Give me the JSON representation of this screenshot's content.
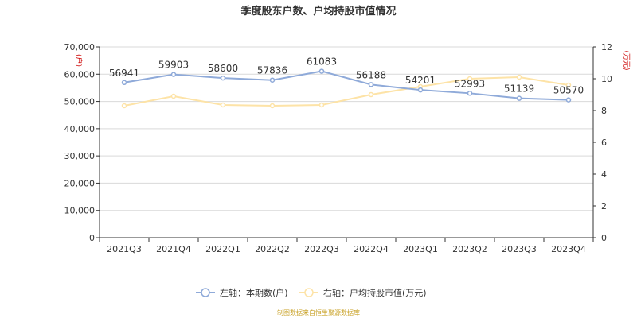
{
  "colors": {
    "left_series": "#8faad9",
    "right_series": "#fde3a7",
    "unit_label": "#cc0000",
    "source_text": "#c9a227",
    "grid": "#d9d9d9",
    "axis": "#333333"
  },
  "chart_data": {
    "type": "line",
    "title": "季度股东户数、户均持股市值情况",
    "categories": [
      "2021Q3",
      "2021Q4",
      "2022Q1",
      "2022Q2",
      "2022Q3",
      "2022Q4",
      "2023Q1",
      "2023Q2",
      "2023Q3",
      "2023Q4"
    ],
    "y_left": {
      "unit": "(户)",
      "ylim": [
        0,
        70000
      ],
      "ticks": [
        "0",
        "10,000",
        "20,000",
        "30,000",
        "40,000",
        "50,000",
        "60,000",
        "70,000"
      ]
    },
    "y_right": {
      "unit": "(万元)",
      "ylim": [
        0,
        12
      ],
      "ticks": [
        "0",
        "2",
        "4",
        "6",
        "8",
        "10",
        "12"
      ]
    },
    "series": [
      {
        "name": "本期数(户)",
        "axis": "left",
        "legend_label": "左轴：本期数(户)",
        "values": [
          56941,
          59903,
          58600,
          57836,
          61083,
          56188,
          54201,
          52993,
          51139,
          50570
        ],
        "labels": [
          "56941",
          "59903",
          "58600",
          "57836",
          "61083",
          "56188",
          "54201",
          "52993",
          "51139",
          "50570"
        ]
      },
      {
        "name": "户均持股市值(万元)",
        "axis": "right",
        "legend_label": "右轴：户均持股市值(万元)",
        "values": [
          8.3,
          8.9,
          8.35,
          8.3,
          8.35,
          9.0,
          9.5,
          10.0,
          10.1,
          9.6
        ]
      }
    ],
    "grid": true,
    "legend_position": "bottom"
  },
  "footer": {
    "source": "制图数据来自恒生聚源数据库"
  }
}
